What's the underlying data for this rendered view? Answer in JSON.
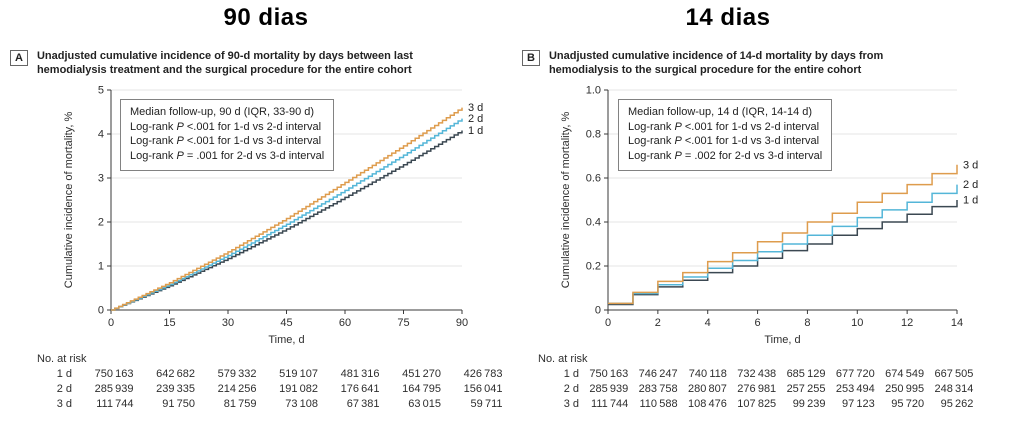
{
  "colors": {
    "line_1d": "#3B4852",
    "line_2d": "#54B6D8",
    "line_3d": "#DE9C4D",
    "grid": "#E5E5E5",
    "axis": "#3A3A3A",
    "annotation_border": "#828282"
  },
  "panels": [
    {
      "letter": "A",
      "header": "90 dias",
      "caption": "Unadjusted cumulative incidence of 90-d mortality by days between last hemodialysis treatment and the surgical procedure for the entire cohort",
      "annotation": {
        "median": "Median follow-up, 90 d (IQR, 33-90 d)",
        "lines": [
          {
            "pre": "Log-rank ",
            "p": "P",
            "post": " <.001 for 1-d vs 2-d interval"
          },
          {
            "pre": "Log-rank ",
            "p": "P",
            "post": " <.001 for 1-d vs 3-d interval"
          },
          {
            "pre": "Log-rank ",
            "p": "P",
            "post": " = .001 for 2-d vs 3-d interval"
          }
        ]
      },
      "at_risk": {
        "title": "No. at risk",
        "rows": [
          {
            "label": "1 d",
            "values": [
              "750 163",
              "642 682",
              "579 332",
              "519 107",
              "481 316",
              "451 270",
              "426 783"
            ]
          },
          {
            "label": "2 d",
            "values": [
              "285 939",
              "239 335",
              "214 256",
              "191 082",
              "176 641",
              "164 795",
              "156 041"
            ]
          },
          {
            "label": "3 d",
            "values": [
              "111 744",
              "91 750",
              "81 759",
              "73 108",
              "67 381",
              "63 015",
              "59 711"
            ]
          }
        ]
      }
    },
    {
      "letter": "B",
      "header": "14 dias",
      "caption": "Unadjusted cumulative incidence of 14-d mortality by days from hemodialysis to the surgical procedure for the entire cohort",
      "annotation": {
        "median": "Median follow-up, 14 d (IQR, 14-14 d)",
        "lines": [
          {
            "pre": "Log-rank ",
            "p": "P",
            "post": " <.001 for 1-d vs 2-d interval"
          },
          {
            "pre": "Log-rank ",
            "p": "P",
            "post": " <.001 for 1-d vs 3-d interval"
          },
          {
            "pre": "Log-rank ",
            "p": "P",
            "post": " = .002 for 2-d vs 3-d interval"
          }
        ]
      },
      "at_risk": {
        "title": "No. at risk",
        "rows": [
          {
            "label": "1 d",
            "values": [
              "750 163",
              "746 247",
              "740 118",
              "732 438",
              "685 129",
              "677 720",
              "674 549",
              "667 505"
            ]
          },
          {
            "label": "2 d",
            "values": [
              "285 939",
              "283 758",
              "280 807",
              "276 981",
              "257 255",
              "253 494",
              "250 995",
              "248 314"
            ]
          },
          {
            "label": "3 d",
            "values": [
              "111 744",
              "110 588",
              "108 476",
              "107 825",
              "99 239",
              "97 123",
              "95 720",
              "95 262"
            ]
          }
        ]
      }
    }
  ],
  "chart_data": [
    {
      "type": "line",
      "step": true,
      "title": "90 dias",
      "xlabel": "Time, d",
      "ylabel": "Cumulative incidence of mortality, %",
      "xlim": [
        0,
        90
      ],
      "ylim": [
        0,
        5
      ],
      "xticks": [
        0,
        15,
        30,
        45,
        60,
        75,
        90
      ],
      "xtick_labels": [
        "0",
        "15",
        "30",
        "45",
        "60",
        "75",
        "90"
      ],
      "yticks": [
        0,
        1,
        2,
        3,
        4,
        5
      ],
      "ytick_labels": [
        "0",
        "1",
        "2",
        "3",
        "4",
        "5"
      ],
      "grid": "horizontal",
      "legend_position": "end-of-line",
      "interpolate_daily": true,
      "x": [
        0,
        15,
        30,
        45,
        60,
        75,
        90
      ],
      "series": [
        {
          "name": "1 d",
          "color_key": "line_1d",
          "values": [
            0,
            0.55,
            1.17,
            1.84,
            2.56,
            3.3,
            4.08
          ]
        },
        {
          "name": "2 d",
          "color_key": "line_2d",
          "values": [
            0,
            0.58,
            1.24,
            1.95,
            2.72,
            3.52,
            4.35
          ]
        },
        {
          "name": "3 d",
          "color_key": "line_3d",
          "values": [
            0,
            0.62,
            1.32,
            2.08,
            2.9,
            3.73,
            4.6
          ]
        }
      ],
      "at_risk_counts": {
        "times": [
          0,
          15,
          30,
          45,
          60,
          75,
          90
        ],
        "1 d": [
          750163,
          642682,
          579332,
          519107,
          481316,
          451270,
          426783
        ],
        "2 d": [
          285939,
          239335,
          214256,
          191082,
          176641,
          164795,
          156041
        ],
        "3 d": [
          111744,
          91750,
          81759,
          73108,
          67381,
          63015,
          59711
        ]
      }
    },
    {
      "type": "line",
      "step": true,
      "title": "14 dias",
      "xlabel": "Time, d",
      "ylabel": "Cumulative incidence of mortality, %",
      "xlim": [
        0,
        14
      ],
      "ylim": [
        0,
        1.0
      ],
      "xticks": [
        0,
        2,
        4,
        6,
        8,
        10,
        12,
        14
      ],
      "xtick_labels": [
        "0",
        "2",
        "4",
        "6",
        "8",
        "10",
        "12",
        "14"
      ],
      "yticks": [
        0,
        0.2,
        0.4,
        0.6,
        0.8,
        1.0
      ],
      "ytick_labels": [
        "0",
        "0.2",
        "0.4",
        "0.6",
        "0.8",
        "1.0"
      ],
      "grid": "horizontal",
      "legend_position": "end-of-line",
      "interpolate_daily": false,
      "x": [
        0,
        1,
        2,
        3,
        4,
        5,
        6,
        7,
        8,
        9,
        10,
        11,
        12,
        13,
        14
      ],
      "series": [
        {
          "name": "1 d",
          "color_key": "line_1d",
          "values": [
            0.025,
            0.07,
            0.105,
            0.135,
            0.17,
            0.2,
            0.235,
            0.27,
            0.3,
            0.34,
            0.37,
            0.4,
            0.435,
            0.47,
            0.5
          ]
        },
        {
          "name": "2 d",
          "color_key": "line_2d",
          "values": [
            0.03,
            0.075,
            0.115,
            0.15,
            0.19,
            0.225,
            0.265,
            0.3,
            0.34,
            0.38,
            0.42,
            0.455,
            0.49,
            0.53,
            0.57
          ]
        },
        {
          "name": "3 d",
          "color_key": "line_3d",
          "values": [
            0.03,
            0.08,
            0.13,
            0.17,
            0.22,
            0.26,
            0.31,
            0.35,
            0.4,
            0.44,
            0.49,
            0.53,
            0.57,
            0.62,
            0.66
          ]
        }
      ],
      "at_risk_counts": {
        "times": [
          0,
          2,
          4,
          6,
          8,
          10,
          12,
          14
        ],
        "1 d": [
          750163,
          746247,
          740118,
          732438,
          685129,
          677720,
          674549,
          667505
        ],
        "2 d": [
          285939,
          283758,
          280807,
          276981,
          257255,
          253494,
          250995,
          248314
        ],
        "3 d": [
          111744,
          110588,
          108476,
          107825,
          99239,
          97123,
          95720,
          95262
        ]
      }
    }
  ]
}
